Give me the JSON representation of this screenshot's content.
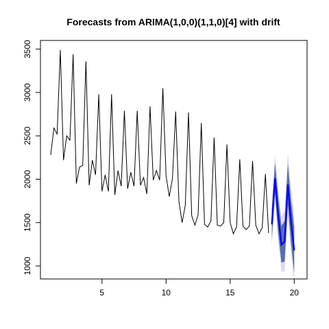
{
  "chart_data": {
    "type": "line",
    "title": "Forecasts from ARIMA(1,0,0)(1,1,0)[4] with drift",
    "xlabel": "",
    "ylabel": "",
    "xlim": [
      0.2,
      21.0
    ],
    "ylim": [
      850,
      3600
    ],
    "x_ticks": [
      5,
      10,
      15,
      20
    ],
    "x_tick_labels": [
      "5",
      "10",
      "15",
      "20"
    ],
    "y_ticks": [
      1000,
      1500,
      2000,
      2500,
      3000,
      3500
    ],
    "y_tick_labels": [
      "1000",
      "1500",
      "2000",
      "2500",
      "3000",
      "3500"
    ],
    "grid": false,
    "legend": "none",
    "colors": {
      "history": "#000000",
      "forecast": "#0000ff",
      "band80": "#596dab",
      "band95": "#dbdbf0"
    },
    "history": {
      "x_start": 1.0,
      "x_step": 0.25,
      "y": [
        2280,
        2590,
        2520,
        3490,
        2220,
        2500,
        2450,
        3440,
        1950,
        2140,
        2160,
        3360,
        1930,
        2220,
        2050,
        2980,
        1860,
        2050,
        1860,
        2980,
        1820,
        2100,
        1920,
        2790,
        1890,
        2080,
        1920,
        2790,
        1930,
        2020,
        1830,
        2840,
        1990,
        2100,
        1990,
        3050,
        2040,
        1800,
        2010,
        2780,
        1750,
        1500,
        1700,
        2770,
        1580,
        1470,
        1590,
        2650,
        1480,
        1450,
        1520,
        2480,
        1470,
        1460,
        1500,
        2400,
        1500,
        1370,
        1450,
        2230,
        1460,
        1420,
        1460,
        2210,
        1470,
        1370,
        1440,
        2060,
        1380
      ]
    },
    "forecast": {
      "x_start": 18.25,
      "x_step": 0.25,
      "mean": [
        1480,
        2010,
        1580,
        1245,
        1280,
        1940,
        1510,
        1180
      ],
      "lo80": [
        1310,
        1835,
        1380,
        1040,
        1050,
        1700,
        1260,
        920
      ],
      "hi80": [
        1650,
        2190,
        1790,
        1460,
        1520,
        2180,
        1760,
        1440
      ],
      "lo95": [
        1225,
        1740,
        1280,
        940,
        930,
        1580,
        1130,
        790
      ],
      "hi95": [
        1740,
        2290,
        1900,
        1570,
        1640,
        2310,
        1900,
        1580
      ]
    }
  }
}
